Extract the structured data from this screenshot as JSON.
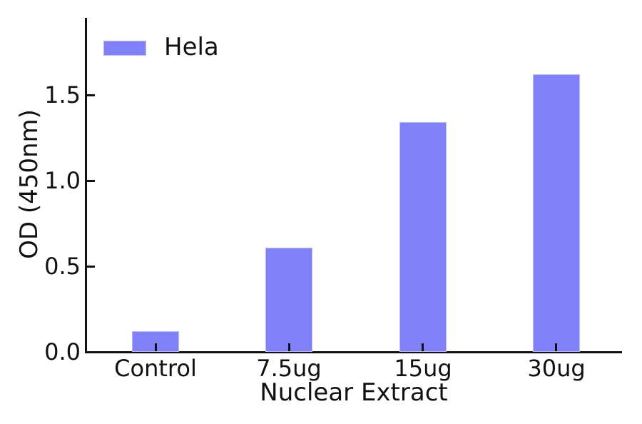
{
  "chart_data": {
    "type": "bar",
    "title": "",
    "xlabel": "Nuclear Extract",
    "ylabel": "OD (450nm)",
    "categories": [
      "Control",
      "7.5ug",
      "15ug",
      "30ug"
    ],
    "series": [
      {
        "name": "Hela",
        "values": [
          0.12,
          0.61,
          1.34,
          1.62
        ]
      }
    ],
    "ylim": [
      0,
      1.95
    ],
    "yticks": [
      "0.0",
      "0.5",
      "1.0",
      "1.5"
    ],
    "grid": false,
    "legend": {
      "label": "Hela",
      "position": "upper-left"
    },
    "colors": {
      "bar": "#8080f8",
      "axis": "#111111",
      "text": "#111111",
      "background": "#ffffff"
    }
  }
}
